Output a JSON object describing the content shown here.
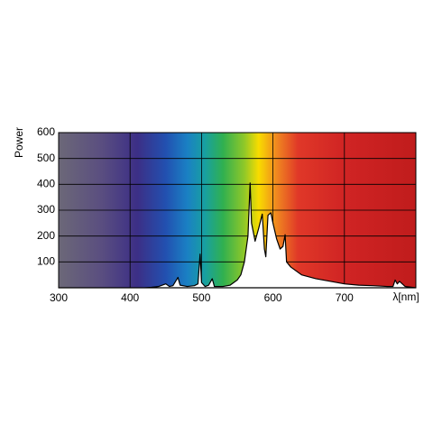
{
  "chart_data": {
    "type": "area",
    "y_label": "Power",
    "x_label": "λ[nm]",
    "xlim": [
      300,
      800
    ],
    "ylim": [
      0,
      600
    ],
    "xticks": [
      300,
      400,
      500,
      600,
      700
    ],
    "yticks": [
      100,
      200,
      300,
      400,
      500,
      600
    ],
    "grid": true,
    "color": "#000000",
    "fill": "#ffffff",
    "x": [
      300,
      420,
      430,
      440,
      450,
      455,
      460,
      467,
      470,
      480,
      490,
      495,
      498,
      500,
      505,
      510,
      515,
      518,
      530,
      540,
      550,
      555,
      560,
      565,
      568,
      570,
      575,
      580,
      585,
      588,
      590,
      593,
      597,
      600,
      605,
      610,
      614,
      617,
      619,
      625,
      640,
      660,
      680,
      700,
      720,
      740,
      760,
      768,
      771,
      774,
      777,
      785,
      800
    ],
    "values": [
      0,
      0,
      2,
      5,
      15,
      5,
      8,
      40,
      10,
      5,
      8,
      15,
      130,
      20,
      5,
      10,
      35,
      5,
      5,
      10,
      30,
      50,
      100,
      200,
      405,
      250,
      180,
      230,
      285,
      150,
      120,
      280,
      290,
      250,
      190,
      150,
      160,
      205,
      100,
      80,
      50,
      35,
      25,
      15,
      10,
      8,
      5,
      5,
      30,
      15,
      25,
      5,
      0
    ]
  }
}
